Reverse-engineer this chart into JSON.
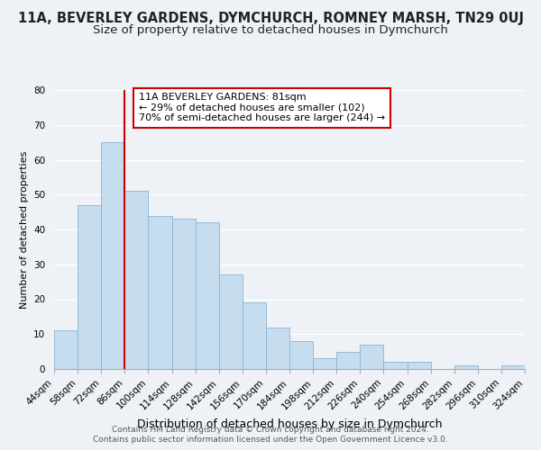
{
  "title": "11A, BEVERLEY GARDENS, DYMCHURCH, ROMNEY MARSH, TN29 0UJ",
  "subtitle": "Size of property relative to detached houses in Dymchurch",
  "xlabel": "Distribution of detached houses by size in Dymchurch",
  "ylabel": "Number of detached properties",
  "bar_values": [
    11,
    47,
    65,
    51,
    44,
    43,
    42,
    27,
    19,
    12,
    8,
    3,
    5,
    7,
    2,
    2,
    0,
    1,
    0,
    1
  ],
  "bar_labels": [
    "44sqm",
    "58sqm",
    "72sqm",
    "86sqm",
    "100sqm",
    "114sqm",
    "128sqm",
    "142sqm",
    "156sqm",
    "170sqm",
    "184sqm",
    "198sqm",
    "212sqm",
    "226sqm",
    "240sqm",
    "254sqm",
    "268sqm",
    "282sqm",
    "296sqm",
    "310sqm",
    "324sqm"
  ],
  "bar_color": "#c6ddef",
  "bar_edge_color": "#8ab4d4",
  "highlight_line_color": "#cc0000",
  "ylim": [
    0,
    80
  ],
  "yticks": [
    0,
    10,
    20,
    30,
    40,
    50,
    60,
    70,
    80
  ],
  "red_line_x": 3.0,
  "annotation_title": "11A BEVERLEY GARDENS: 81sqm",
  "annotation_line1": "← 29% of detached houses are smaller (102)",
  "annotation_line2": "70% of semi-detached houses are larger (244) →",
  "annotation_box_color": "#ffffff",
  "annotation_box_edge": "#cc0000",
  "footer_line1": "Contains HM Land Registry data © Crown copyright and database right 2024.",
  "footer_line2": "Contains public sector information licensed under the Open Government Licence v3.0.",
  "background_color": "#eef2f7",
  "grid_color": "#ffffff",
  "title_fontsize": 10.5,
  "subtitle_fontsize": 9.5,
  "ylabel_fontsize": 8,
  "xlabel_fontsize": 9,
  "tick_fontsize": 7.5,
  "annot_fontsize": 8,
  "footer_fontsize": 6.5
}
